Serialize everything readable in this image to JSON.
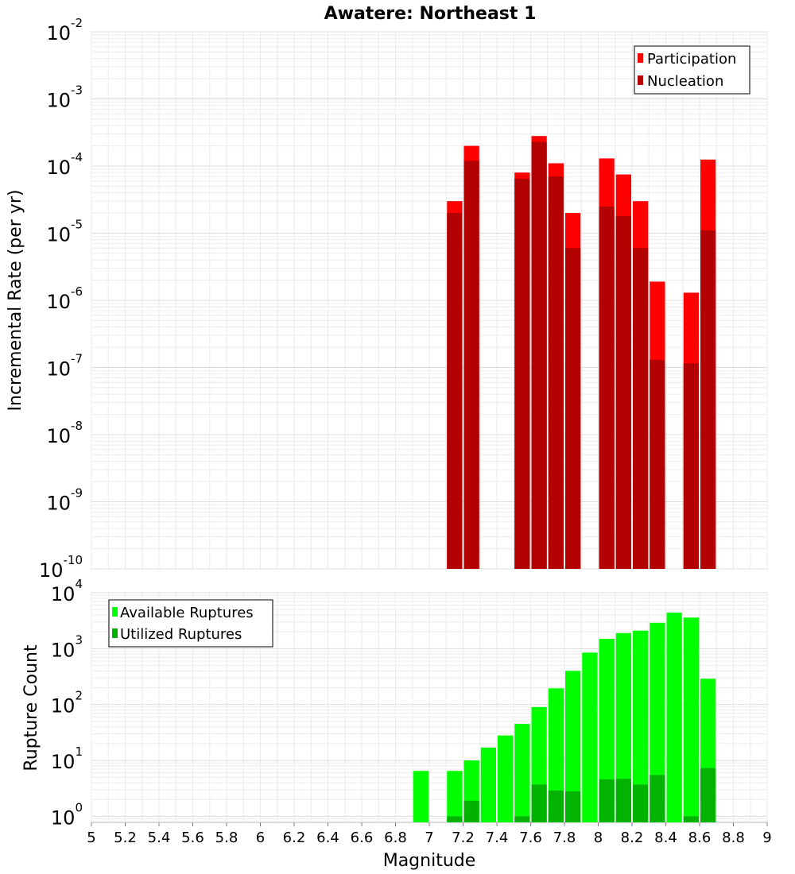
{
  "chart_data": [
    {
      "type": "bar",
      "title": "Awatere: Northeast 1",
      "xlabel": "",
      "ylabel": "Incremental Rate (per yr)",
      "yscale": "log",
      "ylim": [
        1e-10,
        0.01
      ],
      "xlim": [
        5,
        9
      ],
      "y_tick_exponents": [
        -10,
        -9,
        -8,
        -7,
        -6,
        -5,
        -4,
        -3,
        -2
      ],
      "grid": true,
      "legend_position": "top-right",
      "bar_width": 0.1,
      "series": [
        {
          "name": "Participation",
          "color": "#ff0000",
          "x": [
            7.15,
            7.25,
            7.55,
            7.65,
            7.75,
            7.85,
            8.05,
            8.15,
            8.25,
            8.35,
            8.55,
            8.65
          ],
          "values": [
            3e-05,
            0.0002,
            8e-05,
            0.00028,
            0.00011,
            2e-05,
            0.00013,
            7.5e-05,
            3e-05,
            1.9e-06,
            1.3e-06,
            0.000125
          ]
        },
        {
          "name": "Nucleation",
          "color": "#b30000",
          "x": [
            7.15,
            7.25,
            7.55,
            7.65,
            7.75,
            7.85,
            8.05,
            8.15,
            8.25,
            8.35,
            8.55,
            8.65
          ],
          "values": [
            2e-05,
            0.00012,
            6.5e-05,
            0.00023,
            7e-05,
            6e-06,
            2.5e-05,
            1.8e-05,
            6e-06,
            1.3e-07,
            1.15e-07,
            1.1e-05
          ]
        }
      ]
    },
    {
      "type": "bar",
      "title": "",
      "xlabel": "Magnitude",
      "ylabel": "Rupture Count",
      "yscale": "log",
      "ylim": [
        0.78,
        10000
      ],
      "xlim": [
        5,
        9
      ],
      "y_tick_exponents": [
        0,
        1,
        2,
        3,
        4
      ],
      "x_ticks": [
        "5",
        "5.2",
        "5.4",
        "5.6",
        "5.8",
        "6",
        "6.2",
        "6.4",
        "6.6",
        "6.8",
        "7",
        "7.2",
        "7.4",
        "7.6",
        "7.8",
        "8",
        "8.2",
        "8.4",
        "8.6",
        "8.8",
        "9"
      ],
      "grid": true,
      "legend_position": "top-left",
      "bar_width": 0.1,
      "series": [
        {
          "name": "Available Ruptures",
          "color": "#00ff00",
          "x": [
            6.95,
            7.15,
            7.25,
            7.35,
            7.45,
            7.55,
            7.65,
            7.75,
            7.85,
            7.95,
            8.05,
            8.15,
            8.25,
            8.35,
            8.45,
            8.55,
            8.65
          ],
          "values": [
            6.5,
            6.5,
            10,
            17,
            28,
            45,
            90,
            195,
            400,
            850,
            1500,
            1900,
            2100,
            2900,
            4400,
            3600,
            290
          ]
        },
        {
          "name": "Utilized Ruptures",
          "color": "#00b300",
          "x": [
            7.15,
            7.25,
            7.55,
            7.65,
            7.75,
            7.85,
            8.05,
            8.15,
            8.25,
            8.35,
            8.55,
            8.65
          ],
          "values": [
            1,
            1.9,
            1,
            3.7,
            2.9,
            2.8,
            4.6,
            4.7,
            3.7,
            5.5,
            1,
            7.3
          ]
        }
      ]
    }
  ]
}
